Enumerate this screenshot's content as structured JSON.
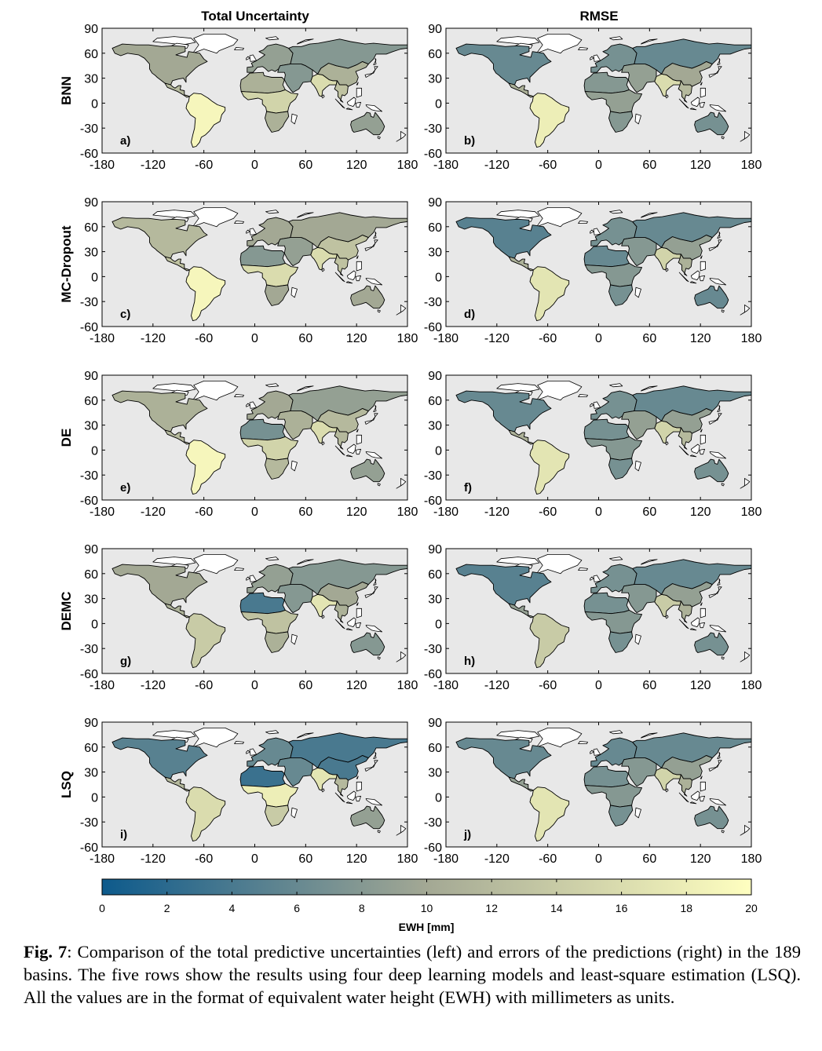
{
  "columns": [
    {
      "title": "Total Uncertainty"
    },
    {
      "title": "RMSE"
    }
  ],
  "rows": [
    {
      "label": "BNN",
      "panels": [
        "a)",
        "b)"
      ]
    },
    {
      "label": "MC-Dropout",
      "panels": [
        "c)",
        "d)"
      ]
    },
    {
      "label": "DE",
      "panels": [
        "e)",
        "f)"
      ]
    },
    {
      "label": "DEMC",
      "panels": [
        "g)",
        "h)"
      ]
    },
    {
      "label": "LSQ",
      "panels": [
        "i)",
        "j)"
      ]
    }
  ],
  "axes": {
    "xlim": [
      -180,
      180
    ],
    "ylim": [
      -60,
      90
    ],
    "xticks": [
      "-180",
      "-120",
      "-60",
      "0",
      "60",
      "120",
      "180"
    ],
    "yticks": [
      "90",
      "60",
      "30",
      "0",
      "-30",
      "-60"
    ]
  },
  "colorbar": {
    "ticks": [
      "0",
      "2",
      "4",
      "6",
      "8",
      "10",
      "12",
      "14",
      "16",
      "18",
      "20"
    ],
    "label": "EWH [mm]",
    "range": [
      0,
      20
    ],
    "colors": [
      "#0d5a8c",
      "#a3a894",
      "#ffffc0"
    ]
  },
  "colors": {
    "ocean": "#e8e8e8",
    "land_outline": "#000000",
    "unmodelled_land": "#ffffff"
  },
  "caption": {
    "label": "Fig. 7",
    "text": ": Comparison of the total predictive uncertainties (left) and errors of the predictions (right) in the 189 basins. The five rows show the results using four deep learning models and least-square estimation (LSQ). All the values are in the format of equivalent water height (EWH) with millimeters as units."
  },
  "basin_values": {
    "order": [
      "north_america",
      "central_america",
      "south_america",
      "north_africa",
      "central_africa",
      "southern_africa",
      "europe",
      "west_asia",
      "india",
      "china",
      "russia",
      "southeast_asia",
      "australia"
    ],
    "a)": [
      10,
      12,
      19,
      11,
      15,
      11,
      9,
      8,
      16,
      11,
      8,
      13,
      9
    ],
    "b)": [
      6,
      11,
      18,
      8,
      9,
      8,
      7,
      9,
      16,
      10,
      6,
      12,
      7
    ],
    "c)": [
      12,
      13,
      19,
      8,
      16,
      10,
      10,
      9,
      16,
      13,
      10,
      13,
      10
    ],
    "d)": [
      5,
      11,
      17,
      6,
      8,
      7,
      7,
      8,
      15,
      9,
      6,
      11,
      6
    ],
    "e)": [
      11,
      12,
      19,
      7,
      15,
      12,
      10,
      11,
      16,
      12,
      9,
      12,
      9
    ],
    "f)": [
      6,
      11,
      17,
      7,
      8,
      7,
      7,
      9,
      15,
      9,
      6,
      12,
      7
    ],
    "g)": [
      10,
      11,
      14,
      4,
      13,
      11,
      9,
      8,
      17,
      10,
      8,
      11,
      8
    ],
    "h)": [
      5,
      9,
      14,
      7,
      8,
      7,
      7,
      8,
      14,
      9,
      6,
      11,
      7
    ],
    "i)": [
      5,
      12,
      16,
      3,
      18,
      14,
      6,
      6,
      17,
      4,
      4,
      12,
      9
    ],
    "j)": [
      6,
      9,
      17,
      7,
      8,
      7,
      6,
      8,
      15,
      9,
      6,
      11,
      7
    ]
  }
}
